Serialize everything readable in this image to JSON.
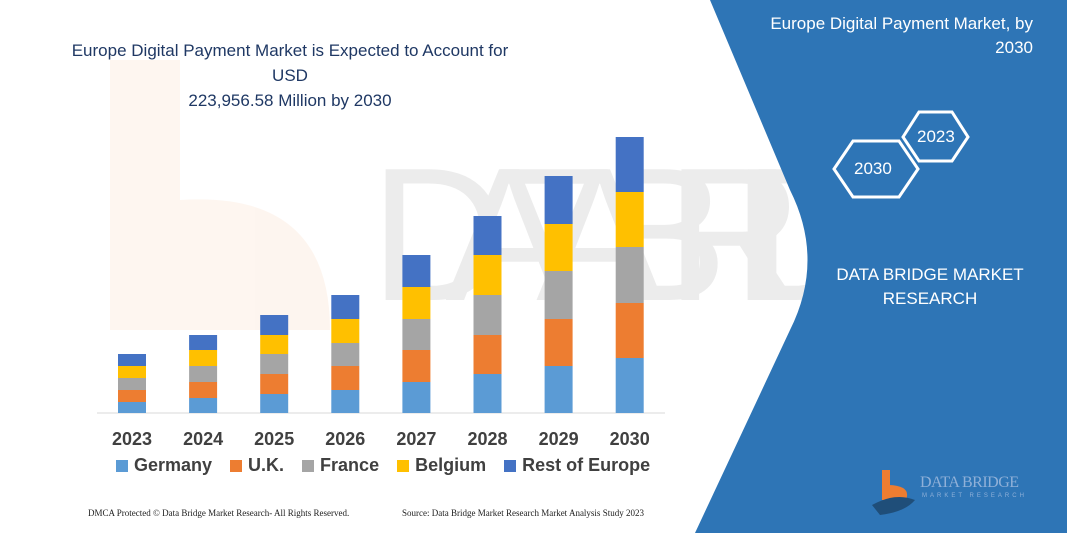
{
  "title_lines": [
    "Europe Digital Payment Market is Expected to Account for USD",
    "223,956.58 Million by 2030"
  ],
  "side_panel": {
    "title_lines": [
      "Europe Digital Payment Market, by",
      "2030"
    ],
    "hex_labels": [
      "2030",
      "2023"
    ],
    "brand_lines": [
      "DATA BRIDGE MARKET",
      "RESEARCH"
    ],
    "logo_text": "DATA BRIDGE",
    "logo_subtext": "MARKET RESEARCH",
    "color": "#2E75B6"
  },
  "footer": {
    "left": "DMCA Protected © Data Bridge Market Research-  All Rights Reserved.",
    "right": "Source: Data Bridge Market Research  Market Analysis Study 2023"
  },
  "chart_data": {
    "type": "bar",
    "stacked": true,
    "title": "Europe Digital Payment Market is Expected to Account for USD 223,956.58 Million by 2030",
    "categories": [
      "2023",
      "2024",
      "2025",
      "2026",
      "2027",
      "2028",
      "2029",
      "2030"
    ],
    "series": [
      {
        "name": "Germany",
        "color": "#5B9BD5",
        "values": [
          11,
          15,
          19,
          23,
          31,
          39,
          47,
          55
        ]
      },
      {
        "name": "U.K.",
        "color": "#ED7D31",
        "values": [
          12,
          16,
          20,
          24,
          32,
          39,
          47,
          55
        ]
      },
      {
        "name": "France",
        "color": "#A5A5A5",
        "values": [
          12,
          16,
          20,
          23,
          31,
          40,
          48,
          56
        ]
      },
      {
        "name": "Belgium",
        "color": "#FFC000",
        "values": [
          12,
          16,
          19,
          24,
          32,
          40,
          47,
          55
        ]
      },
      {
        "name": "Rest of Europe",
        "color": "#4472C4",
        "values": [
          12,
          15,
          20,
          24,
          32,
          39,
          48,
          55
        ]
      }
    ],
    "yaxis_visible": false,
    "grid": false,
    "legend": "bottom"
  }
}
